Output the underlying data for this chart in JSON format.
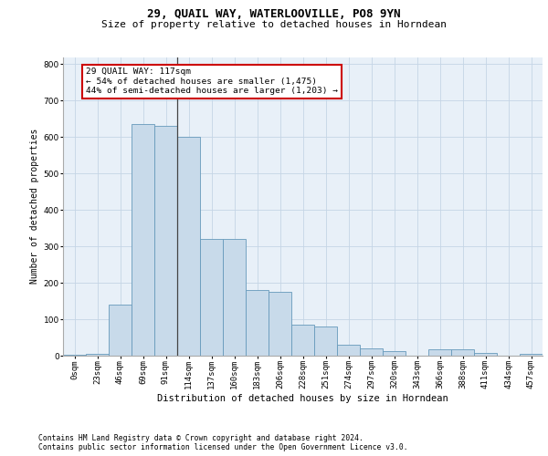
{
  "title1": "29, QUAIL WAY, WATERLOOVILLE, PO8 9YN",
  "title2": "Size of property relative to detached houses in Horndean",
  "xlabel": "Distribution of detached houses by size in Horndean",
  "ylabel": "Number of detached properties",
  "footnote1": "Contains HM Land Registry data © Crown copyright and database right 2024.",
  "footnote2": "Contains public sector information licensed under the Open Government Licence v3.0.",
  "annotation_line1": "29 QUAIL WAY: 117sqm",
  "annotation_line2": "← 54% of detached houses are smaller (1,475)",
  "annotation_line3": "44% of semi-detached houses are larger (1,203) →",
  "bar_color": "#c8daea",
  "bar_edge_color": "#6699bb",
  "vline_color": "#444444",
  "annotation_box_edge": "#cc0000",
  "annotation_box_face": "#ffffff",
  "grid_color": "#c5d5e5",
  "background_color": "#e8f0f8",
  "categories": [
    "0sqm",
    "23sqm",
    "46sqm",
    "69sqm",
    "91sqm",
    "114sqm",
    "137sqm",
    "160sqm",
    "183sqm",
    "206sqm",
    "228sqm",
    "251sqm",
    "274sqm",
    "297sqm",
    "320sqm",
    "343sqm",
    "366sqm",
    "388sqm",
    "411sqm",
    "434sqm",
    "457sqm"
  ],
  "values": [
    2,
    5,
    140,
    635,
    630,
    600,
    320,
    320,
    180,
    175,
    85,
    80,
    30,
    20,
    12,
    0,
    18,
    18,
    8,
    0,
    4
  ],
  "ylim": [
    0,
    820
  ],
  "yticks": [
    0,
    100,
    200,
    300,
    400,
    500,
    600,
    700,
    800
  ],
  "vline_bin_index": 5,
  "title1_fontsize": 9,
  "title2_fontsize": 8,
  "footnote_fontsize": 5.8,
  "ylabel_fontsize": 7,
  "xlabel_fontsize": 7.5,
  "tick_fontsize": 6.5,
  "annotation_fontsize": 6.8
}
